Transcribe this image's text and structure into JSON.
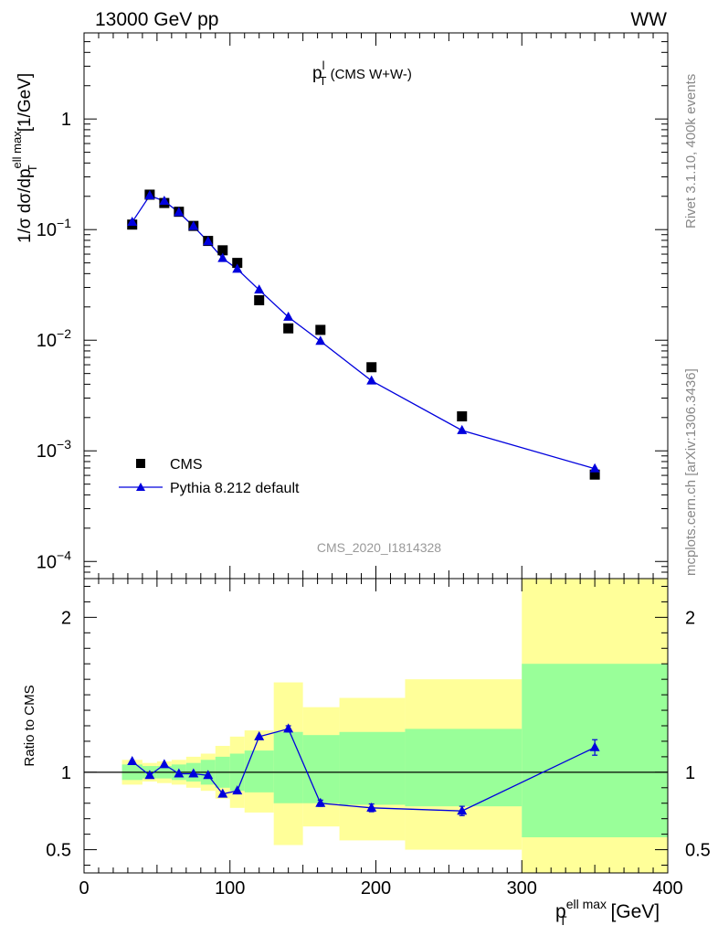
{
  "header": {
    "left": "13000 GeV pp",
    "right": "WW"
  },
  "side": {
    "rivet": "Rivet 3.1.10,  400k events",
    "mcplots": "mcplots.cern.ch [arXiv:1306.3436]"
  },
  "colors": {
    "cms": "#000000",
    "pythia": "#0000dd",
    "band_outer": "#ffff99",
    "band_inner": "#99ff99"
  },
  "chart_data": [
    {
      "type": "line",
      "panel": "main",
      "title_main": "p",
      "title_sup": "l",
      "title_sub": "T",
      "title_rest": " (CMS W+W-)",
      "ylabel": "1/σ dσ/dp_T^{ell max} [1/GeV]",
      "yscale": "log",
      "xlim": [
        0,
        400
      ],
      "ylim": [
        7e-05,
        6
      ],
      "ytick_values": [
        0.0001,
        0.001,
        0.01,
        0.1,
        1
      ],
      "ytick_base": [
        "10",
        "10",
        "10",
        "10",
        "1"
      ],
      "ytick_exp": [
        "−4",
        "−3",
        "−2",
        "−1",
        ""
      ],
      "watermark": "CMS_2020_I1814328",
      "legend": {
        "position": "bottom-left",
        "entries": [
          "CMS",
          "Pythia 8.212 default"
        ]
      },
      "series": [
        {
          "name": "CMS",
          "marker": "square",
          "x": [
            33,
            45,
            55,
            65,
            75,
            85,
            95,
            105,
            120,
            140,
            162,
            197,
            259,
            350
          ],
          "y": [
            0.111,
            0.207,
            0.174,
            0.145,
            0.108,
            0.079,
            0.065,
            0.05,
            0.023,
            0.0128,
            0.0124,
            0.0057,
            0.00205,
            0.00061
          ]
        },
        {
          "name": "Pythia 8.212 default",
          "marker": "triangle",
          "x": [
            33,
            45,
            55,
            65,
            75,
            85,
            95,
            105,
            120,
            140,
            162,
            197,
            259,
            350
          ],
          "y": [
            0.117,
            0.203,
            0.181,
            0.143,
            0.107,
            0.078,
            0.055,
            0.044,
            0.0285,
            0.0162,
            0.0098,
            0.0043,
            0.00153,
            0.00069
          ]
        }
      ]
    },
    {
      "type": "line",
      "panel": "ratio",
      "ylabel": "Ratio to CMS",
      "xlabel_main": "p",
      "xlabel_sup": "ell max",
      "xlabel_sub": "T",
      "xlabel_rest": " [GeV]",
      "xlim": [
        0,
        400
      ],
      "ylim": [
        0.35,
        2.25
      ],
      "xticks": [
        0,
        100,
        200,
        300,
        400
      ],
      "xtick_labels": [
        "0",
        "100",
        "200",
        "300",
        "400"
      ],
      "ytick_values": [
        0.5,
        1,
        2
      ],
      "ytick_labels": [
        "0.5",
        "1",
        "2"
      ],
      "reference_line": 1,
      "bands": [
        {
          "lo": 26,
          "hi": 40,
          "outer": [
            0.92,
            1.08
          ],
          "inner": [
            0.95,
            1.05
          ]
        },
        {
          "lo": 40,
          "hi": 50,
          "outer": [
            0.94,
            1.06
          ],
          "inner": [
            0.96,
            1.04
          ]
        },
        {
          "lo": 50,
          "hi": 60,
          "outer": [
            0.93,
            1.07
          ],
          "inner": [
            0.96,
            1.04
          ]
        },
        {
          "lo": 60,
          "hi": 70,
          "outer": [
            0.92,
            1.08
          ],
          "inner": [
            0.95,
            1.05
          ]
        },
        {
          "lo": 70,
          "hi": 80,
          "outer": [
            0.9,
            1.1
          ],
          "inner": [
            0.94,
            1.06
          ]
        },
        {
          "lo": 80,
          "hi": 90,
          "outer": [
            0.88,
            1.12
          ],
          "inner": [
            0.92,
            1.08
          ]
        },
        {
          "lo": 90,
          "hi": 100,
          "outer": [
            0.83,
            1.17
          ],
          "inner": [
            0.9,
            1.1
          ]
        },
        {
          "lo": 100,
          "hi": 110,
          "outer": [
            0.77,
            1.23
          ],
          "inner": [
            0.88,
            1.12
          ]
        },
        {
          "lo": 110,
          "hi": 130,
          "outer": [
            0.74,
            1.27
          ],
          "inner": [
            0.87,
            1.14
          ]
        },
        {
          "lo": 130,
          "hi": 150,
          "outer": [
            0.53,
            1.58
          ],
          "inner": [
            0.8,
            1.26
          ]
        },
        {
          "lo": 150,
          "hi": 175,
          "outer": [
            0.65,
            1.42
          ],
          "inner": [
            0.8,
            1.24
          ]
        },
        {
          "lo": 175,
          "hi": 220,
          "outer": [
            0.56,
            1.48
          ],
          "inner": [
            0.79,
            1.26
          ]
        },
        {
          "lo": 220,
          "hi": 300,
          "outer": [
            0.5,
            1.6
          ],
          "inner": [
            0.78,
            1.28
          ]
        },
        {
          "lo": 300,
          "hi": 400,
          "outer": [
            0.32,
            2.45
          ],
          "inner": [
            0.58,
            1.7
          ]
        }
      ],
      "series": [
        {
          "name": "Pythia 8.212 default",
          "marker": "triangle",
          "x": [
            33,
            45,
            55,
            65,
            75,
            85,
            95,
            105,
            120,
            140,
            162,
            197,
            259,
            350
          ],
          "y": [
            1.07,
            0.98,
            1.05,
            0.99,
            0.99,
            0.98,
            0.86,
            0.88,
            1.23,
            1.28,
            0.8,
            0.77,
            0.75,
            1.16
          ],
          "err": [
            0,
            0,
            0,
            0,
            0,
            0,
            0,
            0,
            0,
            0.02,
            0.02,
            0.025,
            0.03,
            0.05
          ]
        }
      ]
    }
  ]
}
